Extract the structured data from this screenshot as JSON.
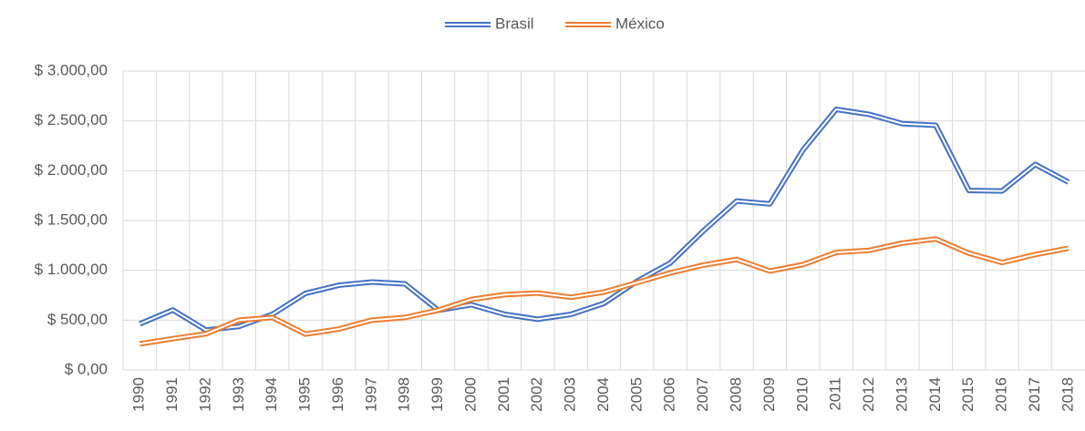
{
  "chart_data": {
    "type": "line",
    "categories": [
      "1990",
      "1991",
      "1992",
      "1993",
      "1994",
      "1995",
      "1996",
      "1997",
      "1998",
      "1999",
      "2000",
      "2001",
      "2002",
      "2003",
      "2004",
      "2005",
      "2006",
      "2007",
      "2008",
      "2009",
      "2010",
      "2011",
      "2012",
      "2013",
      "2014",
      "2015",
      "2016",
      "2017",
      "2018"
    ],
    "series": [
      {
        "name": "Brasil",
        "color": "#4472c4",
        "values": [
          462,
          602,
          400,
          437,
          558,
          769,
          850,
          883,
          864,
          599,
          655,
          559,
          509,
          558,
          669,
          892,
          1075,
          1397,
          1696,
          1667,
          2209,
          2616,
          2565,
          2472,
          2456,
          1802,
          1796,
          2063,
          1885
        ]
      },
      {
        "name": "México",
        "color": "#ed7d31",
        "values": [
          262,
          314,
          363,
          500,
          527,
          360,
          410,
          500,
          527,
          600,
          708,
          756,
          772,
          729,
          782,
          877,
          975,
          1053,
          1109,
          993,
          1058,
          1180,
          1201,
          1274,
          1315,
          1172,
          1078,
          1158,
          1222
        ]
      }
    ],
    "ylim": [
      0,
      3000
    ],
    "yticks": [
      {
        "value": 0,
        "label": "$ 0,00"
      },
      {
        "value": 500,
        "label": "$ 500,00"
      },
      {
        "value": 1000,
        "label": "$ 1.000,00"
      },
      {
        "value": 1500,
        "label": "$ 1.500,00"
      },
      {
        "value": 2000,
        "label": "$ 2.000,00"
      },
      {
        "value": 2500,
        "label": "$ 2.500,00"
      },
      {
        "value": 3000,
        "label": "$ 3.000,00"
      }
    ],
    "grid": true,
    "legend": "top"
  }
}
